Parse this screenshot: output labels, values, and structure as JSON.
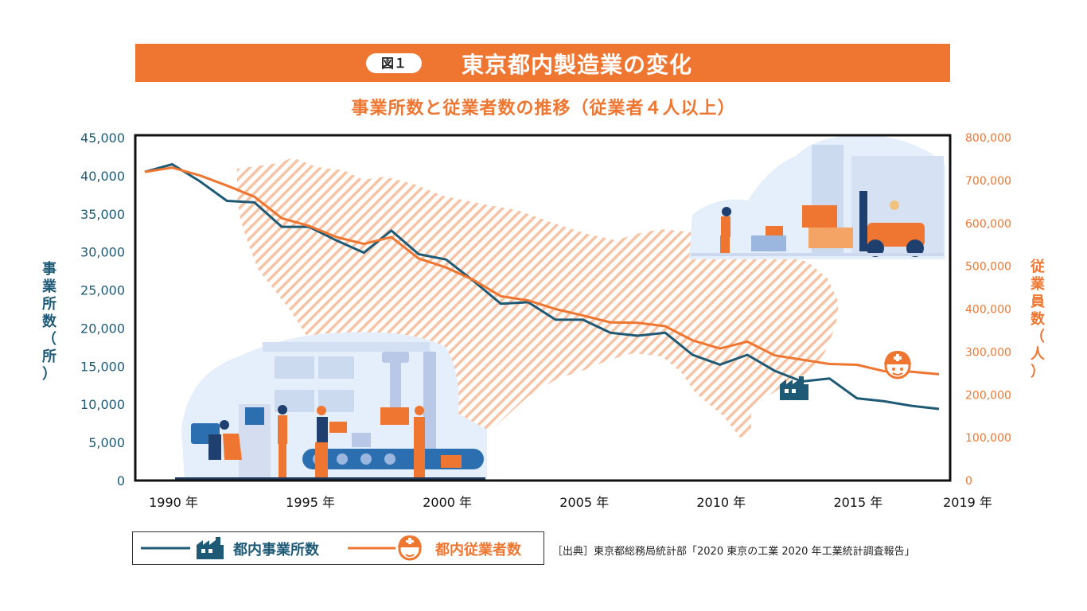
{
  "figure_label": "図１",
  "title": "東京都内製造業の変化",
  "subtitle": "事業所数と従業者数の推移（従業者４人以上）",
  "source": "［出典］東京都総務局統計部「2020 東京の工業 2020 年工業統計調査報告」",
  "colors": {
    "establishments": "#1e5a75",
    "employees": "#ef7630",
    "banner": "#ef7630",
    "map_hatch": "#f6c3a4"
  },
  "chart_data": {
    "type": "line",
    "title": "東京都内製造業の変化",
    "subtitle": "事業所数と従業者数の推移（従業者４人以上）",
    "x": [
      1990,
      1991,
      1992,
      1993,
      1994,
      1995,
      1996,
      1997,
      1998,
      1999,
      2000,
      2001,
      2002,
      2003,
      2004,
      2005,
      2006,
      2007,
      2008,
      2009,
      2010,
      2011,
      2012,
      2013,
      2014,
      2015,
      2016,
      2017,
      2018,
      2019
    ],
    "x_tick_labels": [
      "1990 年",
      "1995 年",
      "2000 年",
      "2005 年",
      "2010 年",
      "2015 年",
      "2019 年"
    ],
    "x_tick_values": [
      1990,
      1995,
      2000,
      2005,
      2010,
      2015,
      2019
    ],
    "y_left": {
      "label": "事業所数（所）",
      "range": [
        0,
        45000
      ],
      "ticks": [
        "45,000",
        "40,000",
        "35,000",
        "30,000",
        "25,000",
        "20,000",
        "15,000",
        "10,000",
        "5,000",
        "0"
      ]
    },
    "y_right": {
      "label": "従業員数（人）",
      "range": [
        0,
        800000
      ],
      "ticks": [
        "800,000",
        "700,000",
        "600,000",
        "500,000",
        "400,000",
        "300,000",
        "200,000",
        "100,000",
        "0"
      ]
    },
    "series": [
      {
        "name": "都内事業所数",
        "axis": "left",
        "icon": "factory-icon",
        "values": [
          40500,
          41500,
          39300,
          36700,
          36500,
          33300,
          33300,
          31500,
          29900,
          32800,
          29700,
          29000,
          26200,
          23200,
          23400,
          21100,
          21100,
          19400,
          19000,
          19400,
          16500,
          15200,
          16500,
          14400,
          13000,
          13400,
          10800,
          10400,
          9800,
          9400
        ]
      },
      {
        "name": "都内従業者数",
        "axis": "right",
        "icon": "worker-helmet-icon",
        "values": [
          720000,
          730000,
          712000,
          688000,
          662000,
          612000,
          594000,
          568000,
          552000,
          568000,
          518000,
          497000,
          468000,
          430000,
          420000,
          400000,
          385000,
          369000,
          368000,
          360000,
          327000,
          308000,
          324000,
          292000,
          282000,
          272000,
          270000,
          255000,
          254000,
          248000
        ]
      }
    ],
    "grid": false,
    "legend_position": "bottom-left"
  }
}
